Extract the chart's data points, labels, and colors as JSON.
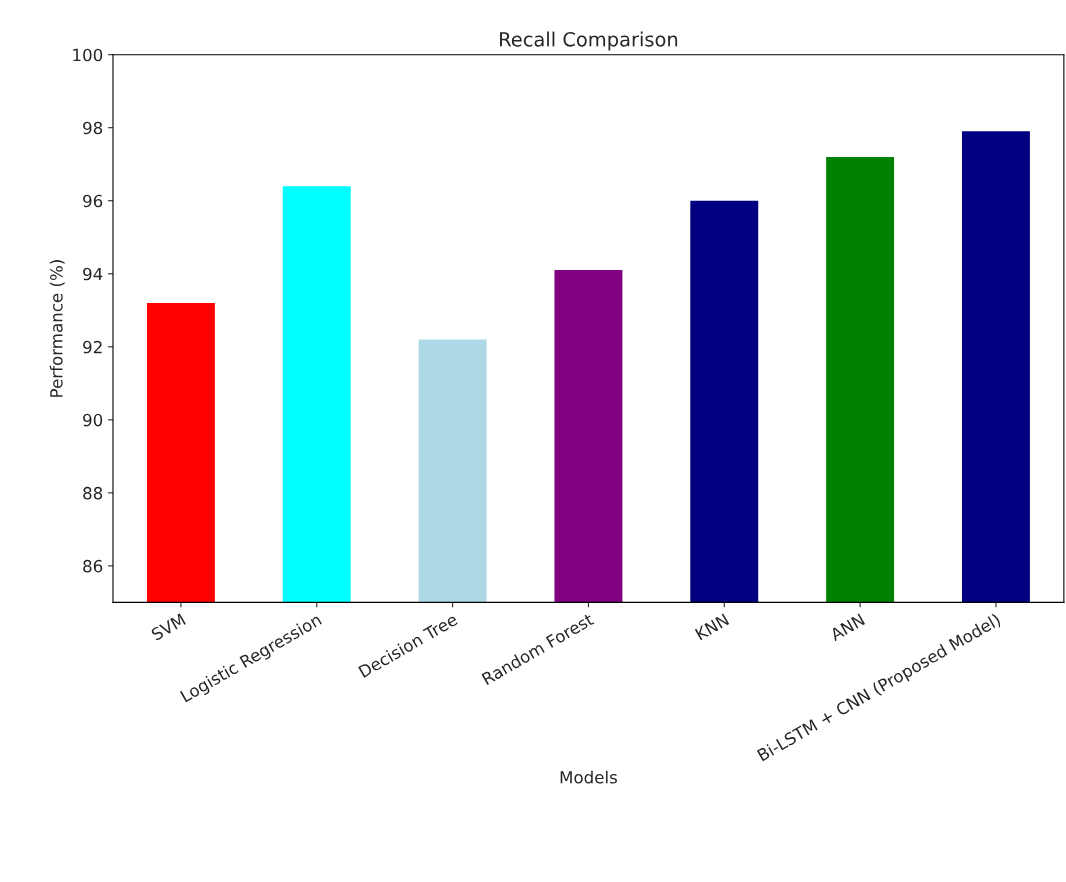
{
  "chart_data": {
    "type": "bar",
    "title": "Recall Comparison",
    "xlabel": "Models",
    "ylabel": "Performance (%)",
    "categories": [
      "SVM",
      "Logistic Regression",
      "Decision Tree",
      "Random Forest",
      "KNN",
      "ANN",
      "Bi-LSTM + CNN (Proposed Model)"
    ],
    "values": [
      93.2,
      96.4,
      92.2,
      94.1,
      96.0,
      97.2,
      97.9
    ],
    "colors": [
      "#ff0000",
      "#00ffff",
      "#add8e6",
      "#800080",
      "#000080",
      "#008000",
      "#000080"
    ],
    "ylim": [
      85,
      100
    ],
    "yticks": [
      86,
      88,
      90,
      92,
      94,
      96,
      98,
      100
    ],
    "grid": false
  }
}
